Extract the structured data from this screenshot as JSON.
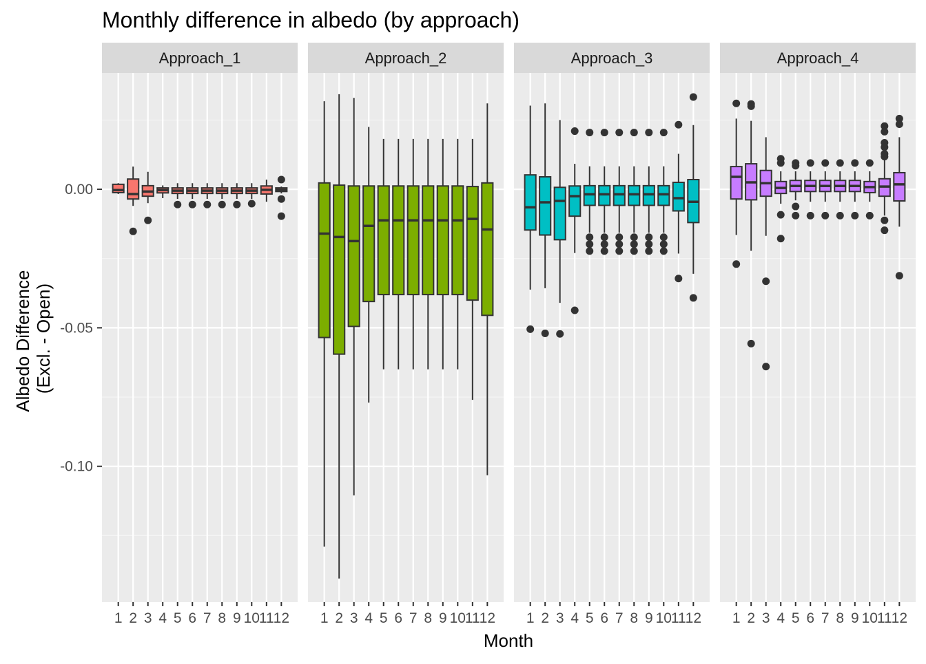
{
  "chart_data": {
    "type": "box",
    "title": "Monthly difference in albedo (by approach)",
    "xlabel": "Month",
    "ylabel_lines": [
      "Albedo Difference",
      "(Excl. - Open)"
    ],
    "y_ticks": [
      0.0,
      -0.05,
      -0.1
    ],
    "y_tick_labels": [
      "0.00",
      "-0.05",
      "-0.10"
    ],
    "ylim": [
      -0.149,
      0.042
    ],
    "categories": [
      "1",
      "2",
      "3",
      "4",
      "5",
      "6",
      "7",
      "8",
      "9",
      "10",
      "11",
      "12"
    ],
    "grid": true,
    "panels": [
      {
        "name": "Approach_1",
        "color": "#F8766D",
        "boxes": [
          {
            "month": 1,
            "lower": -0.0017,
            "q1": -0.0012,
            "median": -0.0003,
            "q3": 0.0018,
            "upper": 0.0022,
            "outliers": []
          },
          {
            "month": 2,
            "lower": -0.006,
            "q1": -0.0035,
            "median": -0.0017,
            "q3": 0.0037,
            "upper": 0.0082,
            "outliers": [
              -0.0152
            ]
          },
          {
            "month": 3,
            "lower": -0.005,
            "q1": -0.0025,
            "median": -0.0008,
            "q3": 0.0013,
            "upper": 0.0063,
            "outliers": [
              -0.0112
            ]
          },
          {
            "month": 4,
            "lower": -0.0032,
            "q1": -0.0013,
            "median": -0.0003,
            "q3": 0.0005,
            "upper": 0.0014,
            "outliers": []
          },
          {
            "month": 5,
            "lower": -0.0035,
            "q1": -0.0015,
            "median": -0.0005,
            "q3": 0.0005,
            "upper": 0.0022,
            "outliers": [
              -0.0055
            ]
          },
          {
            "month": 6,
            "lower": -0.0035,
            "q1": -0.0015,
            "median": -0.0005,
            "q3": 0.0005,
            "upper": 0.0022,
            "outliers": [
              -0.0055
            ]
          },
          {
            "month": 7,
            "lower": -0.0035,
            "q1": -0.0015,
            "median": -0.0005,
            "q3": 0.0005,
            "upper": 0.0022,
            "outliers": [
              -0.0055
            ]
          },
          {
            "month": 8,
            "lower": -0.0035,
            "q1": -0.0015,
            "median": -0.0005,
            "q3": 0.0005,
            "upper": 0.0022,
            "outliers": [
              -0.0055
            ]
          },
          {
            "month": 9,
            "lower": -0.0035,
            "q1": -0.0015,
            "median": -0.0005,
            "q3": 0.0005,
            "upper": 0.0022,
            "outliers": [
              -0.0055
            ]
          },
          {
            "month": 10,
            "lower": -0.0035,
            "q1": -0.0015,
            "median": -0.0005,
            "q3": 0.0005,
            "upper": 0.0022,
            "outliers": [
              -0.0052
            ]
          },
          {
            "month": 11,
            "lower": -0.0045,
            "q1": -0.0017,
            "median": -0.0002,
            "q3": 0.0012,
            "upper": 0.0035,
            "outliers": []
          },
          {
            "month": 12,
            "lower": -0.0015,
            "q1": -0.0008,
            "median": -0.0002,
            "q3": 0.0005,
            "upper": 0.001,
            "outliers": [
              0.0035,
              -0.0035,
              -0.0097
            ]
          }
        ]
      },
      {
        "name": "Approach_2",
        "color": "#7CAE00",
        "boxes": [
          {
            "month": 1,
            "lower": -0.129,
            "q1": -0.0535,
            "median": -0.016,
            "q3": 0.0023,
            "upper": 0.0318,
            "outliers": []
          },
          {
            "month": 2,
            "lower": -0.1405,
            "q1": -0.0595,
            "median": -0.0172,
            "q3": 0.0015,
            "upper": 0.0343,
            "outliers": []
          },
          {
            "month": 3,
            "lower": -0.1105,
            "q1": -0.0495,
            "median": -0.0187,
            "q3": 0.0012,
            "upper": 0.033,
            "outliers": []
          },
          {
            "month": 4,
            "lower": -0.077,
            "q1": -0.0405,
            "median": -0.0132,
            "q3": 0.0012,
            "upper": 0.0225,
            "outliers": []
          },
          {
            "month": 5,
            "lower": -0.065,
            "q1": -0.038,
            "median": -0.0112,
            "q3": 0.0012,
            "upper": 0.0182,
            "outliers": []
          },
          {
            "month": 6,
            "lower": -0.065,
            "q1": -0.038,
            "median": -0.0112,
            "q3": 0.0012,
            "upper": 0.0182,
            "outliers": []
          },
          {
            "month": 7,
            "lower": -0.065,
            "q1": -0.038,
            "median": -0.0112,
            "q3": 0.0012,
            "upper": 0.0182,
            "outliers": []
          },
          {
            "month": 8,
            "lower": -0.065,
            "q1": -0.038,
            "median": -0.0112,
            "q3": 0.0012,
            "upper": 0.0182,
            "outliers": []
          },
          {
            "month": 9,
            "lower": -0.065,
            "q1": -0.038,
            "median": -0.0112,
            "q3": 0.0012,
            "upper": 0.0182,
            "outliers": []
          },
          {
            "month": 10,
            "lower": -0.065,
            "q1": -0.038,
            "median": -0.0112,
            "q3": 0.0012,
            "upper": 0.0182,
            "outliers": []
          },
          {
            "month": 11,
            "lower": -0.076,
            "q1": -0.04,
            "median": -0.0107,
            "q3": 0.001,
            "upper": 0.0182,
            "outliers": []
          },
          {
            "month": 12,
            "lower": -0.1032,
            "q1": -0.0455,
            "median": -0.0145,
            "q3": 0.0023,
            "upper": 0.031,
            "outliers": []
          }
        ]
      },
      {
        "name": "Approach_3",
        "color": "#00BFC4",
        "boxes": [
          {
            "month": 1,
            "lower": -0.0362,
            "q1": -0.0147,
            "median": -0.0065,
            "q3": 0.0052,
            "upper": 0.0302,
            "outliers": [
              -0.0505
            ]
          },
          {
            "month": 2,
            "lower": -0.0357,
            "q1": -0.0165,
            "median": -0.0047,
            "q3": 0.0045,
            "upper": 0.031,
            "outliers": [
              -0.052
            ]
          },
          {
            "month": 3,
            "lower": -0.041,
            "q1": -0.0182,
            "median": -0.0042,
            "q3": 0.0007,
            "upper": 0.025,
            "outliers": [
              -0.0522
            ]
          },
          {
            "month": 4,
            "lower": -0.023,
            "q1": -0.0097,
            "median": -0.0025,
            "q3": 0.0012,
            "upper": 0.0092,
            "outliers": [
              0.021,
              -0.0437
            ]
          },
          {
            "month": 5,
            "lower": -0.0157,
            "q1": -0.0058,
            "median": -0.0018,
            "q3": 0.0013,
            "upper": 0.0083,
            "outliers": [
              0.0205,
              -0.0173,
              -0.0198,
              -0.0223
            ]
          },
          {
            "month": 6,
            "lower": -0.0157,
            "q1": -0.0058,
            "median": -0.0018,
            "q3": 0.0013,
            "upper": 0.0083,
            "outliers": [
              0.0205,
              -0.0173,
              -0.0198,
              -0.0223
            ]
          },
          {
            "month": 7,
            "lower": -0.0157,
            "q1": -0.0058,
            "median": -0.0018,
            "q3": 0.0013,
            "upper": 0.0083,
            "outliers": [
              0.0205,
              -0.0173,
              -0.0198,
              -0.0223
            ]
          },
          {
            "month": 8,
            "lower": -0.0157,
            "q1": -0.0058,
            "median": -0.0018,
            "q3": 0.0013,
            "upper": 0.0083,
            "outliers": [
              0.0205,
              -0.0173,
              -0.0198,
              -0.0223
            ]
          },
          {
            "month": 9,
            "lower": -0.0157,
            "q1": -0.0058,
            "median": -0.0018,
            "q3": 0.0013,
            "upper": 0.0083,
            "outliers": [
              0.0205,
              -0.0173,
              -0.0198,
              -0.0223
            ]
          },
          {
            "month": 10,
            "lower": -0.0157,
            "q1": -0.0058,
            "median": -0.0018,
            "q3": 0.0013,
            "upper": 0.0083,
            "outliers": [
              0.0205,
              -0.0173,
              -0.0198,
              -0.0223
            ]
          },
          {
            "month": 11,
            "lower": -0.0232,
            "q1": -0.0078,
            "median": -0.0032,
            "q3": 0.0025,
            "upper": 0.0128,
            "outliers": [
              0.0233,
              -0.0322
            ]
          },
          {
            "month": 12,
            "lower": -0.0305,
            "q1": -0.012,
            "median": -0.0045,
            "q3": 0.0035,
            "upper": 0.0232,
            "outliers": [
              0.0333,
              -0.0392
            ]
          }
        ]
      },
      {
        "name": "Approach_4",
        "color": "#C77CFF",
        "boxes": [
          {
            "month": 1,
            "lower": -0.0165,
            "q1": -0.0035,
            "median": 0.0045,
            "q3": 0.0082,
            "upper": 0.0255,
            "outliers": [
              0.031,
              -0.027
            ]
          },
          {
            "month": 2,
            "lower": -0.0222,
            "q1": -0.0038,
            "median": 0.0025,
            "q3": 0.0092,
            "upper": 0.0247,
            "outliers": [
              0.0308,
              0.03,
              -0.0557
            ]
          },
          {
            "month": 3,
            "lower": -0.0168,
            "q1": -0.0025,
            "median": 0.0022,
            "q3": 0.0068,
            "upper": 0.0188,
            "outliers": [
              -0.0332,
              -0.064
            ]
          },
          {
            "month": 4,
            "lower": -0.0052,
            "q1": -0.0015,
            "median": 0.0005,
            "q3": 0.0028,
            "upper": 0.0065,
            "outliers": [
              0.011,
              0.0095,
              -0.0092,
              -0.0178
            ]
          },
          {
            "month": 5,
            "lower": -0.004,
            "q1": -0.0008,
            "median": 0.0012,
            "q3": 0.0032,
            "upper": 0.0065,
            "outliers": [
              0.0095,
              0.0085,
              -0.0062,
              -0.0095
            ]
          },
          {
            "month": 6,
            "lower": -0.0045,
            "q1": -0.0008,
            "median": 0.0012,
            "q3": 0.0032,
            "upper": 0.0065,
            "outliers": [
              0.0095,
              -0.0095
            ]
          },
          {
            "month": 7,
            "lower": -0.0045,
            "q1": -0.0008,
            "median": 0.0012,
            "q3": 0.0032,
            "upper": 0.0065,
            "outliers": [
              0.0095,
              -0.0095
            ]
          },
          {
            "month": 8,
            "lower": -0.0045,
            "q1": -0.0008,
            "median": 0.0012,
            "q3": 0.0032,
            "upper": 0.0065,
            "outliers": [
              0.0095,
              -0.0095
            ]
          },
          {
            "month": 9,
            "lower": -0.0045,
            "q1": -0.0008,
            "median": 0.0012,
            "q3": 0.0032,
            "upper": 0.0065,
            "outliers": [
              0.0095,
              -0.0095
            ]
          },
          {
            "month": 10,
            "lower": -0.0045,
            "q1": -0.0012,
            "median": 0.0008,
            "q3": 0.0028,
            "upper": 0.0065,
            "outliers": [
              0.0095,
              -0.0095
            ]
          },
          {
            "month": 11,
            "lower": -0.0095,
            "q1": -0.0025,
            "median": 0.001,
            "q3": 0.0038,
            "upper": 0.0105,
            "outliers": [
              0.0228,
              0.0208,
              0.0168,
              0.0152,
              0.0128,
              0.0118,
              -0.0112,
              -0.0148
            ]
          },
          {
            "month": 12,
            "lower": -0.0135,
            "q1": -0.0042,
            "median": 0.0018,
            "q3": 0.006,
            "upper": 0.0188,
            "outliers": [
              0.0255,
              0.0235,
              -0.0312
            ]
          }
        ]
      }
    ]
  }
}
